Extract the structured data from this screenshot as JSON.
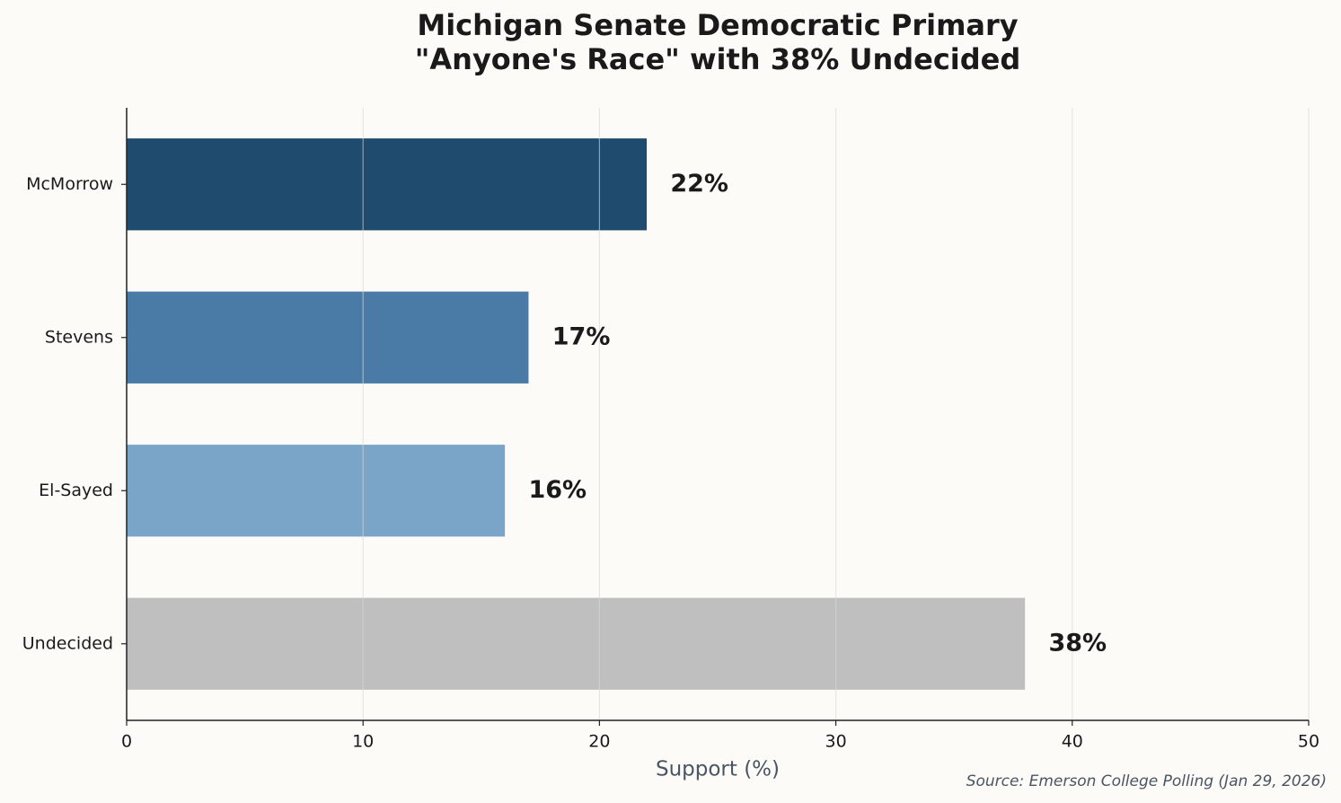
{
  "chart_data": {
    "type": "bar",
    "orientation": "horizontal",
    "title": [
      "Michigan Senate Democratic Primary",
      "\"Anyone's Race\" with 38% Undecided"
    ],
    "categories": [
      "McMorrow",
      "Stevens",
      "El-Sayed",
      "Undecided"
    ],
    "values": [
      22,
      17,
      16,
      38
    ],
    "value_labels": [
      "22%",
      "17%",
      "16%",
      "38%"
    ],
    "colors": [
      "#1f4b6e",
      "#4a7ba6",
      "#7aa5c8",
      "#bfbfbf"
    ],
    "xlim": [
      0,
      50
    ],
    "xticks": [
      0,
      10,
      20,
      30,
      40,
      50
    ],
    "x_label": "Support (%)",
    "source": "Source: Emerson College Polling (Jan 29, 2026)",
    "grid": true
  }
}
